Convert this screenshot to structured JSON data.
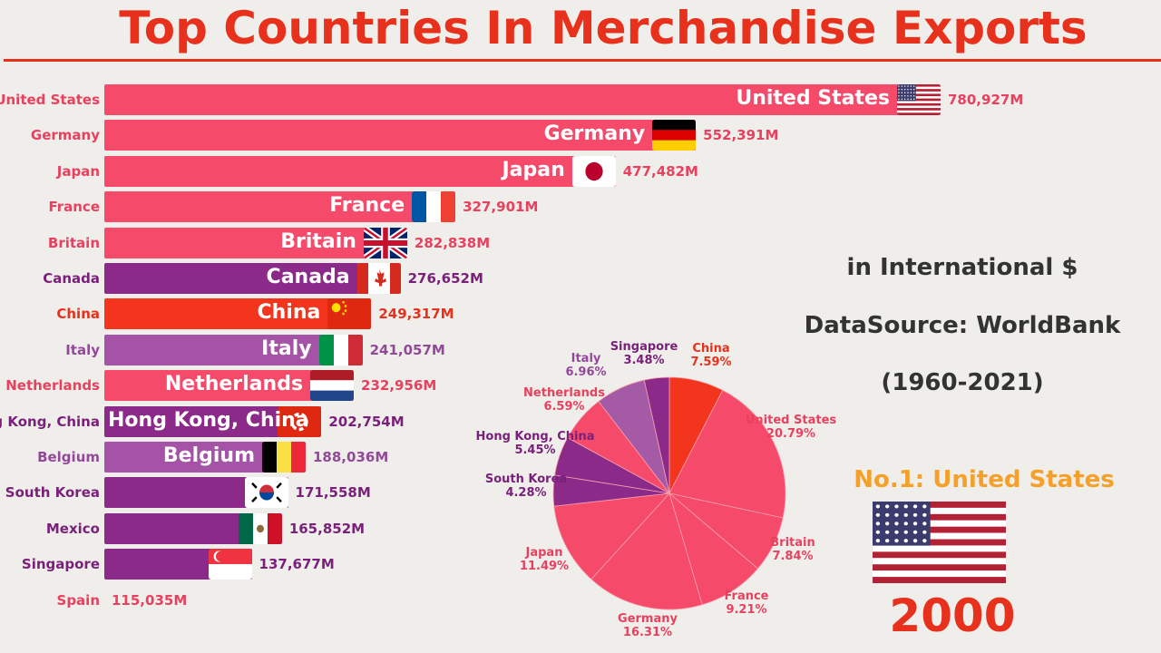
{
  "title": "Top Countries In Merchandise Exports",
  "notes": {
    "unit": "in International $",
    "source": "DataSource: WorldBank",
    "range": "(1960-2021)"
  },
  "leader": {
    "label": "No.1: United States",
    "flag": "us",
    "year": "2000"
  },
  "colors": {
    "pink": "#f54a6a",
    "purple": "#8c2a8a",
    "lightpurple": "#a553a6",
    "red": "#f2351c",
    "title": "#e8311c"
  },
  "chart_data": [
    {
      "type": "bar",
      "orientation": "horizontal",
      "unit": "M",
      "year": "2000",
      "categories": [
        "United States",
        "Germany",
        "Japan",
        "France",
        "Britain",
        "Canada",
        "China",
        "Italy",
        "Netherlands",
        "Hong Kong, China",
        "Belgium",
        "South Korea",
        "Mexico",
        "Singapore",
        "Spain"
      ],
      "values": [
        780927,
        552391,
        477482,
        327901,
        282838,
        276652,
        249317,
        241057,
        232956,
        202754,
        188036,
        171558,
        165852,
        137677,
        115035
      ],
      "value_labels": [
        "780,927M",
        "552,391M",
        "477,482M",
        "327,901M",
        "282,838M",
        "276,652M",
        "249,317M",
        "241,057M",
        "232,956M",
        "202,754M",
        "188,036M",
        "171,558M",
        "165,852M",
        "137,677M",
        "115,035M"
      ],
      "bar_colors": [
        "pink",
        "pink",
        "pink",
        "pink",
        "pink",
        "purple",
        "red",
        "lightpurple",
        "pink",
        "purple",
        "lightpurple",
        "purple",
        "purple",
        "purple",
        "pink"
      ],
      "flags": [
        "us",
        "de",
        "jp",
        "fr",
        "gb",
        "ca",
        "cn",
        "it",
        "nl",
        "hk",
        "be",
        "kr",
        "mx",
        "sg",
        ""
      ],
      "inner_labels": [
        true,
        true,
        true,
        true,
        true,
        true,
        true,
        true,
        true,
        true,
        true,
        false,
        false,
        false,
        false
      ]
    },
    {
      "type": "pie",
      "categories": [
        "China",
        "United States",
        "Britain",
        "France",
        "Germany",
        "Japan",
        "South Korea",
        "Hong Kong, China",
        "Netherlands",
        "Italy",
        "Singapore"
      ],
      "values": [
        7.59,
        20.79,
        7.84,
        9.21,
        16.31,
        11.49,
        4.28,
        5.45,
        6.59,
        6.96,
        3.48
      ],
      "value_labels": [
        "7.59%",
        "20.79%",
        "7.84%",
        "9.21%",
        "16.31%",
        "11.49%",
        "4.28%",
        "5.45%",
        "6.59%",
        "6.96%",
        "3.48%"
      ],
      "slice_colors": [
        "red",
        "pink",
        "pink",
        "pink",
        "pink",
        "pink",
        "purple",
        "purple",
        "pink",
        "lightpurple",
        "purple"
      ]
    }
  ]
}
